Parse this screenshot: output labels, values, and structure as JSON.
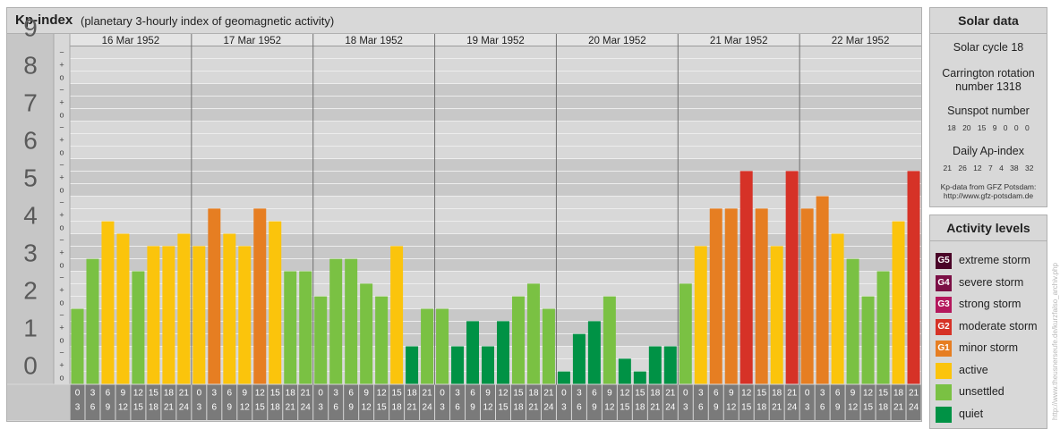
{
  "header": {
    "title": "Kp-index",
    "subtitle": "(planetary 3-hourly index of geomagnetic activity)"
  },
  "chart_data": {
    "type": "bar",
    "title": "Kp-index",
    "subtitle": "(planetary 3-hourly index of geomagnetic activity)",
    "ylim": [
      0,
      9
    ],
    "y_ticks": [
      "0",
      "1",
      "2",
      "3",
      "4",
      "5",
      "6",
      "7",
      "8",
      "9"
    ],
    "minor_marks": [
      "o",
      "+",
      "−"
    ],
    "days": [
      "16 Mar 1952",
      "17 Mar 1952",
      "18 Mar 1952",
      "19 Mar 1952",
      "20 Mar 1952",
      "21 Mar 1952",
      "22 Mar 1952"
    ],
    "interval_labels": [
      [
        "0",
        "3"
      ],
      [
        "3",
        "6"
      ],
      [
        "6",
        "9"
      ],
      [
        "9",
        "12"
      ],
      [
        "12",
        "15"
      ],
      [
        "15",
        "18"
      ],
      [
        "18",
        "21"
      ],
      [
        "21",
        "24"
      ]
    ],
    "values": [
      [
        2.0,
        3.33,
        4.33,
        4.0,
        3.0,
        3.67,
        3.67,
        4.0
      ],
      [
        3.67,
        4.67,
        4.0,
        3.67,
        4.67,
        4.33,
        3.0,
        3.0
      ],
      [
        2.33,
        3.33,
        3.33,
        2.67,
        2.33,
        3.67,
        1.0,
        2.0
      ],
      [
        2.0,
        1.0,
        1.67,
        1.0,
        1.67,
        2.33,
        2.67,
        2.0
      ],
      [
        0.33,
        1.33,
        1.67,
        2.33,
        0.67,
        0.33,
        1.0,
        1.0
      ],
      [
        2.67,
        3.67,
        4.67,
        4.67,
        5.67,
        4.67,
        3.67,
        5.67
      ],
      [
        4.67,
        5.0,
        4.0,
        3.33,
        2.33,
        3.0,
        4.33,
        5.67
      ]
    ],
    "level_colors": {
      "quiet": "#009245",
      "unsettled": "#7ac143",
      "active": "#fbc40c",
      "G1": "#e67e22",
      "G2": "#d63227",
      "G3": "#b4185c",
      "G4": "#7b0f45",
      "G5": "#4a0428"
    },
    "grid": true
  },
  "solar": {
    "title": "Solar data",
    "cycle": "Solar cycle 18",
    "carrington_line1": "Carrington rotation",
    "carrington_line2": "number 1318",
    "sunspot_title": "Sunspot number",
    "sunspot_values": "18 20 15 9 0 0 0",
    "ap_title": "Daily Ap-index",
    "ap_values": "21 26 12 7 4 38 32",
    "source_line1": "Kp-data from GFZ Potsdam:",
    "source_line2": "http://www.gfz-potsdam.de"
  },
  "activity": {
    "title": "Activity levels",
    "levels": [
      {
        "code": "G5",
        "label": "extreme storm",
        "color": "#4a0428"
      },
      {
        "code": "G4",
        "label": "severe storm",
        "color": "#7b0f45"
      },
      {
        "code": "G3",
        "label": "strong storm",
        "color": "#b4185c"
      },
      {
        "code": "G2",
        "label": "moderate storm",
        "color": "#d63227"
      },
      {
        "code": "G1",
        "label": "minor storm",
        "color": "#e67e22"
      },
      {
        "code": "",
        "label": "active",
        "color": "#fbc40c"
      },
      {
        "code": "",
        "label": "unsettled",
        "color": "#7ac143"
      },
      {
        "code": "",
        "label": "quiet",
        "color": "#009245"
      }
    ]
  },
  "watermark": "http://www.theusnerseufe.de/kurzfalso_archiv.php"
}
